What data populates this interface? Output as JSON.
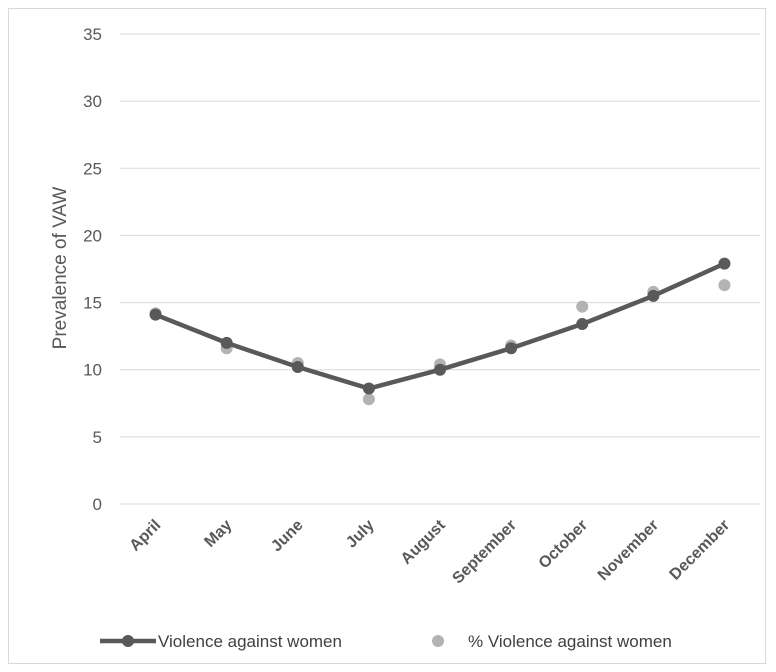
{
  "chart_data": {
    "type": "line",
    "categories": [
      "April",
      "May",
      "June",
      "July",
      "August",
      "September",
      "October",
      "November",
      "December"
    ],
    "series": [
      {
        "name": "Violence against women",
        "style": "line-markers",
        "color": "#595959",
        "values": [
          14.1,
          12.0,
          10.2,
          8.6,
          10.0,
          11.6,
          13.4,
          15.5,
          17.9
        ]
      },
      {
        "name": "% Violence against women",
        "style": "markers",
        "color": "#b3b3b3",
        "values": [
          14.2,
          11.6,
          10.5,
          7.8,
          10.4,
          11.8,
          14.7,
          15.8,
          16.3
        ]
      }
    ],
    "xlabel": "",
    "ylabel": "Prevalence of VAW",
    "ylim": [
      0,
      35
    ],
    "yticks": [
      0,
      5,
      10,
      15,
      20,
      25,
      30,
      35
    ],
    "grid": true,
    "legend": "bottom"
  }
}
